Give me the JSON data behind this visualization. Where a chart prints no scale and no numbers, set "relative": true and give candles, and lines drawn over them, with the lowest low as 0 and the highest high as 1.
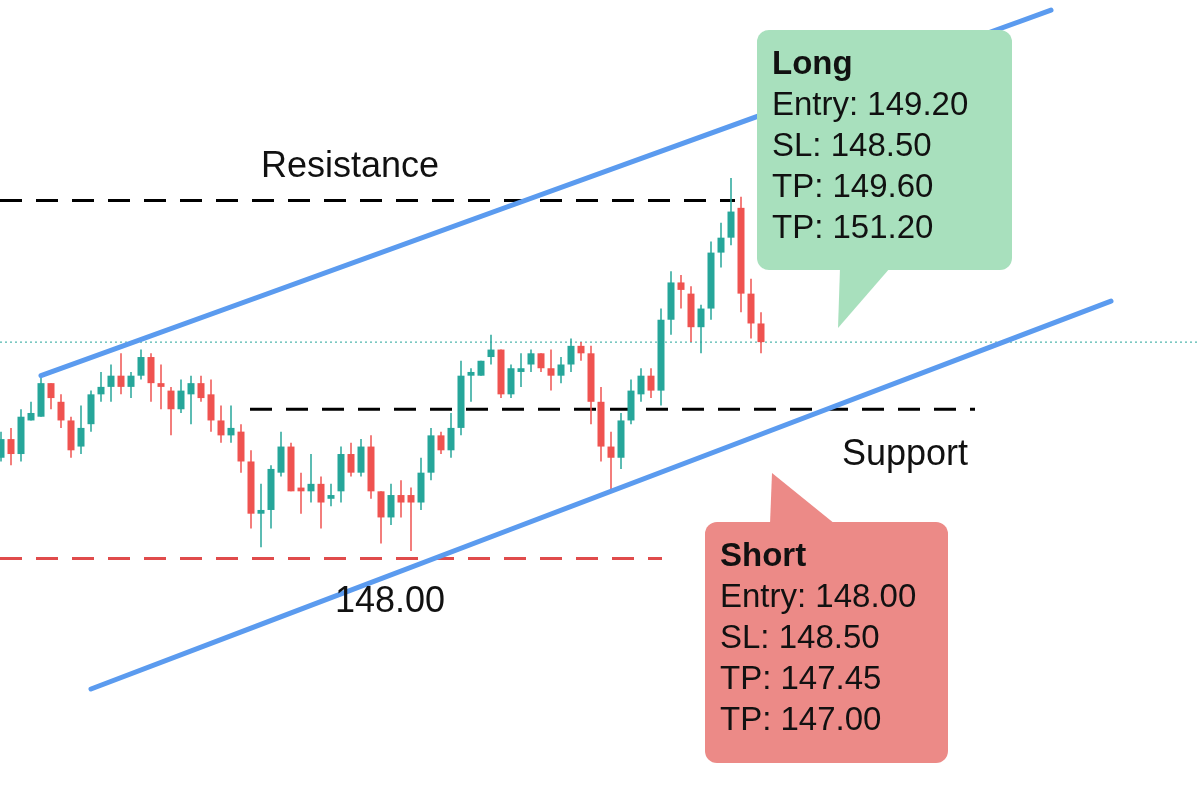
{
  "chart_data": {
    "type": "candlestick",
    "relative": true,
    "categories": [
      null,
      null,
      null,
      null,
      null,
      null,
      null,
      null,
      null,
      null,
      null,
      null,
      null,
      null,
      null,
      null,
      null,
      null,
      null,
      null,
      null,
      null,
      null,
      null,
      null,
      null,
      null,
      null,
      null,
      null,
      null,
      null,
      null,
      null,
      null,
      null,
      null,
      null,
      null,
      null,
      null,
      null,
      null,
      null,
      null,
      null,
      null,
      null,
      null,
      null,
      null,
      null,
      null,
      null,
      null,
      null,
      null,
      null,
      null,
      null,
      null,
      null,
      null,
      null,
      null,
      null,
      null,
      null,
      null,
      null,
      null,
      null,
      null,
      null,
      null,
      null,
      null,
      null,
      null,
      null,
      null,
      null,
      null,
      null,
      null,
      null,
      null,
      null,
      null,
      null,
      null,
      null,
      null,
      null,
      null,
      null,
      null,
      null,
      null,
      null,
      null,
      null,
      null,
      null,
      null,
      null,
      null,
      null,
      null,
      null,
      null,
      null
    ],
    "ohlc": [
      [
        0.25,
        0.32,
        0.24,
        0.3
      ],
      [
        0.3,
        0.33,
        0.23,
        0.26
      ],
      [
        0.26,
        0.38,
        0.24,
        0.36
      ],
      [
        0.35,
        0.4,
        0.35,
        0.37
      ],
      [
        0.36,
        0.47,
        0.36,
        0.45
      ],
      [
        0.45,
        0.45,
        0.38,
        0.41
      ],
      [
        0.4,
        0.42,
        0.33,
        0.35
      ],
      [
        0.35,
        0.36,
        0.25,
        0.27
      ],
      [
        0.28,
        0.39,
        0.26,
        0.33
      ],
      [
        0.34,
        0.43,
        0.32,
        0.42
      ],
      [
        0.42,
        0.48,
        0.4,
        0.44
      ],
      [
        0.44,
        0.5,
        0.4,
        0.47
      ],
      [
        0.47,
        0.53,
        0.42,
        0.44
      ],
      [
        0.44,
        0.48,
        0.41,
        0.47
      ],
      [
        0.47,
        0.54,
        0.46,
        0.52
      ],
      [
        0.52,
        0.53,
        0.4,
        0.45
      ],
      [
        0.45,
        0.5,
        0.38,
        0.44
      ],
      [
        0.43,
        0.44,
        0.31,
        0.38
      ],
      [
        0.38,
        0.46,
        0.37,
        0.43
      ],
      [
        0.42,
        0.47,
        0.34,
        0.45
      ],
      [
        0.45,
        0.47,
        0.4,
        0.41
      ],
      [
        0.42,
        0.46,
        0.32,
        0.35
      ],
      [
        0.35,
        0.39,
        0.29,
        0.31
      ],
      [
        0.31,
        0.39,
        0.29,
        0.33
      ],
      [
        0.32,
        0.34,
        0.21,
        0.24
      ],
      [
        0.24,
        0.27,
        0.06,
        0.1
      ],
      [
        0.1,
        0.18,
        0.01,
        0.11
      ],
      [
        0.11,
        0.23,
        0.06,
        0.22
      ],
      [
        0.21,
        0.32,
        0.2,
        0.28
      ],
      [
        0.28,
        0.29,
        0.16,
        0.16
      ],
      [
        0.17,
        0.21,
        0.1,
        0.16
      ],
      [
        0.16,
        0.26,
        0.13,
        0.18
      ],
      [
        0.18,
        0.2,
        0.06,
        0.13
      ],
      [
        0.14,
        0.18,
        0.12,
        0.15
      ],
      [
        0.16,
        0.28,
        0.13,
        0.26
      ],
      [
        0.26,
        0.29,
        0.2,
        0.21
      ],
      [
        0.21,
        0.3,
        0.2,
        0.28
      ],
      [
        0.28,
        0.31,
        0.14,
        0.16
      ],
      [
        0.16,
        0.16,
        0.02,
        0.09
      ],
      [
        0.09,
        0.18,
        0.07,
        0.15
      ],
      [
        0.15,
        0.19,
        0.09,
        0.13
      ],
      [
        0.15,
        0.17,
        0,
        0.13
      ],
      [
        0.13,
        0.25,
        0.11,
        0.21
      ],
      [
        0.21,
        0.33,
        0.19,
        0.31
      ],
      [
        0.31,
        0.32,
        0.26,
        0.27
      ],
      [
        0.27,
        0.37,
        0.25,
        0.33
      ],
      [
        0.33,
        0.51,
        0.31,
        0.47
      ],
      [
        0.47,
        0.49,
        0.4,
        0.48
      ],
      [
        0.47,
        0.51,
        0.47,
        0.51
      ],
      [
        0.52,
        0.58,
        0.5,
        0.54
      ],
      [
        0.54,
        0.54,
        0.41,
        0.42
      ],
      [
        0.42,
        0.5,
        0.41,
        0.49
      ],
      [
        0.48,
        0.53,
        0.44,
        0.49
      ],
      [
        0.5,
        0.54,
        0.48,
        0.53
      ],
      [
        0.53,
        0.53,
        0.48,
        0.49
      ],
      [
        0.49,
        0.54,
        0.43,
        0.47
      ],
      [
        0.47,
        0.52,
        0.45,
        0.5
      ],
      [
        0.5,
        0.57,
        0.48,
        0.55
      ],
      [
        0.55,
        0.56,
        0.51,
        0.53
      ],
      [
        0.53,
        0.55,
        0.34,
        0.4
      ],
      [
        0.4,
        0.44,
        0.24,
        0.28
      ],
      [
        0.28,
        0.32,
        0.16,
        0.25
      ],
      [
        0.25,
        0.37,
        0.22,
        0.35
      ],
      [
        0.35,
        0.46,
        0.34,
        0.43
      ],
      [
        0.42,
        0.49,
        0.4,
        0.47
      ],
      [
        0.47,
        0.49,
        0.41,
        0.43
      ],
      [
        0.43,
        0.65,
        0.39,
        0.62
      ],
      [
        0.62,
        0.75,
        0.58,
        0.72
      ],
      [
        0.72,
        0.74,
        0.65,
        0.7
      ],
      [
        0.69,
        0.71,
        0.56,
        0.6
      ],
      [
        0.6,
        0.66,
        0.53,
        0.65
      ],
      [
        0.65,
        0.83,
        0.62,
        0.8
      ],
      [
        0.8,
        0.88,
        0.76,
        0.84
      ],
      [
        0.84,
        1,
        0.82,
        0.91
      ],
      [
        0.92,
        0.95,
        0.64,
        0.69
      ],
      [
        0.69,
        0.73,
        0.57,
        0.61
      ],
      [
        0.61,
        0.64,
        0.53,
        0.56
      ],
      null,
      null,
      null,
      null,
      null,
      null,
      null,
      null,
      null,
      null,
      null,
      null,
      null,
      null,
      null,
      null,
      null,
      null,
      null,
      null,
      null,
      null,
      null,
      null,
      null,
      null,
      null,
      null,
      null,
      null,
      null,
      null,
      null,
      null,
      null
    ],
    "series": [
      {
        "type": "line",
        "color": "#5b9bef",
        "values": [
          null,
          null,
          null,
          null,
          0.47,
          null,
          null,
          null,
          null,
          null,
          null,
          null,
          null,
          null,
          null,
          null,
          null,
          null,
          null,
          null,
          null,
          null,
          null,
          null,
          null,
          null,
          null,
          null,
          null,
          null,
          null,
          null,
          null,
          null,
          null,
          null,
          null,
          null,
          null,
          null,
          null,
          null,
          null,
          null,
          null,
          null,
          null,
          null,
          null,
          null,
          null,
          null,
          null,
          null,
          null,
          null,
          null,
          null,
          null,
          null,
          null,
          null,
          null,
          null,
          null,
          null,
          null,
          null,
          null,
          null,
          null,
          null,
          null,
          null,
          null,
          null,
          null,
          null,
          null,
          null,
          null,
          null,
          null,
          null,
          null,
          null,
          null,
          null,
          null,
          null,
          null,
          null,
          null,
          null,
          null,
          null,
          null,
          null,
          null,
          null,
          null,
          null,
          null,
          null,
          null,
          1.45,
          null,
          null,
          null,
          null,
          null,
          null
        ]
      },
      {
        "type": "line",
        "color": "#5b9bef",
        "values": [
          null,
          null,
          null,
          null,
          null,
          null,
          null,
          null,
          null,
          -0.37,
          null,
          null,
          null,
          null,
          null,
          null,
          null,
          null,
          null,
          null,
          null,
          null,
          null,
          null,
          null,
          null,
          null,
          null,
          null,
          null,
          null,
          null,
          null,
          null,
          null,
          null,
          null,
          null,
          null,
          null,
          null,
          null,
          null,
          null,
          null,
          null,
          null,
          null,
          null,
          null,
          null,
          null,
          null,
          null,
          null,
          null,
          null,
          null,
          null,
          null,
          null,
          null,
          null,
          null,
          null,
          null,
          null,
          null,
          null,
          null,
          null,
          null,
          null,
          null,
          null,
          null,
          null,
          null,
          null,
          null,
          null,
          null,
          null,
          null,
          null,
          null,
          null,
          null,
          null,
          null,
          null,
          null,
          null,
          null,
          null,
          null,
          null,
          null,
          null,
          null,
          null,
          null,
          null,
          null,
          null,
          null,
          null,
          null,
          null,
          null,
          null,
          0.67
        ]
      }
    ],
    "ref_lines": [
      {
        "axis": "y",
        "value": 0.94,
        "label": "Resistance",
        "color": "#000000",
        "line_style": "dashed"
      },
      {
        "axis": "y",
        "value": 0.38,
        "label": "Support",
        "color": "#000000",
        "line_style": "dashed"
      },
      {
        "axis": "y",
        "value": -0.02,
        "color": "#e04b4b",
        "line_style": "dashed"
      },
      {
        "axis": "y",
        "value": 0.56,
        "color": "#26a69a",
        "line_style": "dotted"
      }
    ],
    "annotations": [
      "Long\nEntry: 149.20\nSL: 148.50\nTP: 149.60\nTP: 151.20",
      "Short\nEntry: 148.00\nSL: 148.50\nTP: 147.45\nTP: 147.00",
      "148.00"
    ]
  }
}
